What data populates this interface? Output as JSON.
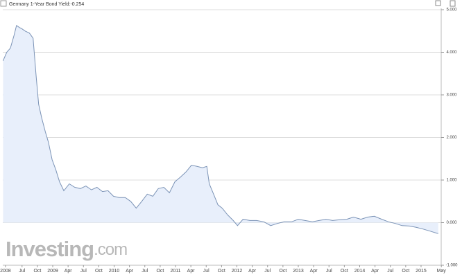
{
  "chart_data": {
    "type": "area",
    "title": "Germany 1-Year Bond Yield:-0.254",
    "watermark": "Investing",
    "watermark_suffix": ".com",
    "color": "#7b93b6",
    "fill": "#e8effb",
    "grid": true,
    "x": [
      2008.19,
      2008.25,
      2008.31,
      2008.37,
      2008.41,
      2008.46,
      2008.5,
      2008.55,
      2008.62,
      2008.68,
      2008.73,
      2008.77,
      2008.82,
      2008.88,
      2008.93,
      2008.99,
      2009.05,
      2009.11,
      2009.18,
      2009.27,
      2009.36,
      2009.45,
      2009.54,
      2009.63,
      2009.72,
      2009.81,
      2009.9,
      2009.99,
      2010.08,
      2010.18,
      2010.27,
      2010.36,
      2010.45,
      2010.54,
      2010.63,
      2010.72,
      2010.81,
      2010.9,
      2010.99,
      2011.08,
      2011.17,
      2011.26,
      2011.35,
      2011.44,
      2011.51,
      2011.55,
      2011.62,
      2011.69,
      2011.76,
      2011.85,
      2011.94,
      2012.01,
      2012.1,
      2012.21,
      2012.32,
      2012.44,
      2012.55,
      2012.66,
      2012.77,
      2012.89,
      2013.0,
      2013.11,
      2013.23,
      2013.34,
      2013.45,
      2013.56,
      2013.68,
      2013.79,
      2013.9,
      2014.02,
      2014.13,
      2014.24,
      2014.36,
      2014.47,
      2014.58,
      2014.69,
      2014.81,
      2014.92,
      2015.03,
      2015.15,
      2015.26,
      2015.28
    ],
    "values": [
      3.8,
      4.0,
      4.1,
      4.4,
      4.63,
      4.58,
      4.55,
      4.5,
      4.45,
      4.33,
      3.44,
      2.78,
      2.46,
      2.13,
      1.89,
      1.48,
      1.24,
      0.96,
      0.75,
      0.91,
      0.83,
      0.8,
      0.86,
      0.77,
      0.83,
      0.73,
      0.75,
      0.62,
      0.59,
      0.59,
      0.5,
      0.34,
      0.5,
      0.67,
      0.62,
      0.8,
      0.83,
      0.7,
      0.96,
      1.07,
      1.19,
      1.35,
      1.32,
      1.29,
      1.32,
      0.91,
      0.67,
      0.42,
      0.34,
      0.18,
      0.05,
      -0.07,
      0.08,
      0.05,
      0.05,
      0.02,
      -0.07,
      -0.02,
      0.02,
      0.02,
      0.08,
      0.05,
      0.02,
      0.05,
      0.08,
      0.05,
      0.07,
      0.08,
      0.13,
      0.08,
      0.13,
      0.15,
      0.08,
      0.02,
      -0.02,
      -0.07,
      -0.08,
      -0.11,
      -0.15,
      -0.2,
      -0.25,
      -0.254
    ],
    "xlim": [
      2008.186,
      2015.328
    ],
    "xticks": [
      {
        "value": 2008.23,
        "label": "2008"
      },
      {
        "value": 2008.5,
        "label": "Jul"
      },
      {
        "value": 2008.75,
        "label": "Oct"
      },
      {
        "value": 2009,
        "label": "2009"
      },
      {
        "value": 2009.25,
        "label": "Apr"
      },
      {
        "value": 2009.5,
        "label": "Jul"
      },
      {
        "value": 2009.75,
        "label": "Oct"
      },
      {
        "value": 2010,
        "label": "2010"
      },
      {
        "value": 2010.25,
        "label": "Apr"
      },
      {
        "value": 2010.5,
        "label": "Jul"
      },
      {
        "value": 2010.75,
        "label": "Oct"
      },
      {
        "value": 2011,
        "label": "2011"
      },
      {
        "value": 2011.25,
        "label": "Apr"
      },
      {
        "value": 2011.5,
        "label": "Jul"
      },
      {
        "value": 2011.75,
        "label": "Oct"
      },
      {
        "value": 2012,
        "label": "2012"
      },
      {
        "value": 2012.25,
        "label": "Apr"
      },
      {
        "value": 2012.5,
        "label": "Jul"
      },
      {
        "value": 2012.75,
        "label": "Oct"
      },
      {
        "value": 2013,
        "label": "2013"
      },
      {
        "value": 2013.25,
        "label": "Apr"
      },
      {
        "value": 2013.5,
        "label": "Jul"
      },
      {
        "value": 2013.75,
        "label": "Oct"
      },
      {
        "value": 2014,
        "label": "2014"
      },
      {
        "value": 2014.25,
        "label": "Apr"
      },
      {
        "value": 2014.5,
        "label": "Jul"
      },
      {
        "value": 2014.75,
        "label": "Oct"
      },
      {
        "value": 2015,
        "label": "2015"
      },
      {
        "value": 2015.33,
        "label": "May"
      }
    ],
    "ylim": [
      -1,
      5
    ],
    "yticks": [
      {
        "value": 5,
        "label": "5.000"
      },
      {
        "value": 4,
        "label": "4.000"
      },
      {
        "value": 3,
        "label": "3.000"
      },
      {
        "value": 2,
        "label": "2.000"
      },
      {
        "value": 1,
        "label": "1.000"
      },
      {
        "value": 0,
        "label": "0.000"
      },
      {
        "value": -1,
        "label": "-1.000"
      }
    ]
  }
}
